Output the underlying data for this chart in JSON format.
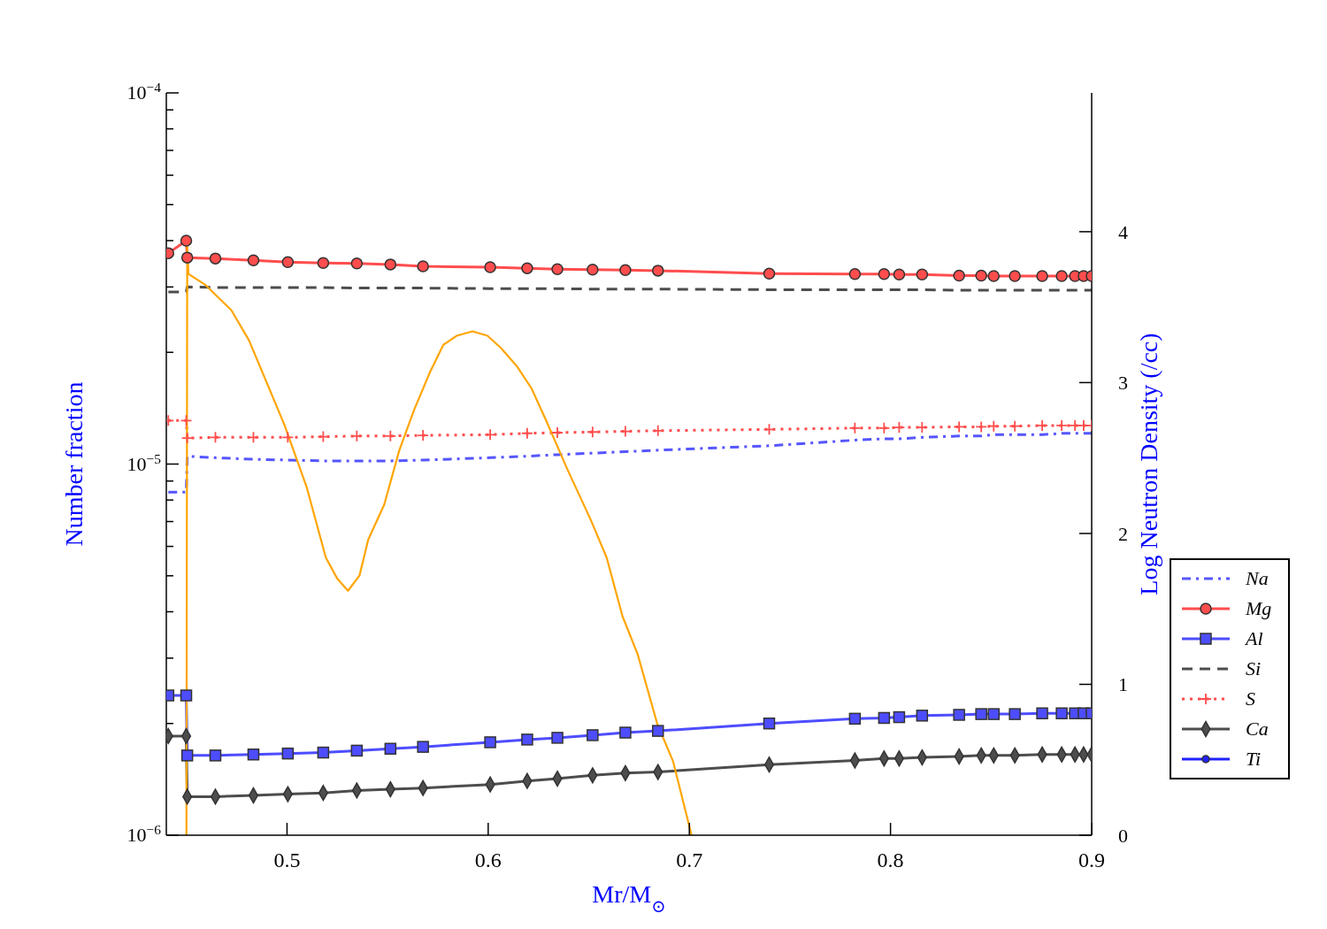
{
  "chart_data": {
    "type": "line",
    "xlabel": "Mr/M$_{⊙}$",
    "ylabel": "Number fraction",
    "y2label": "Log Neutron Density (/cc)",
    "log": "y",
    "legend": "right",
    "xlim": [
      0.44,
      0.9
    ],
    "xticks": [
      0.5,
      0.6,
      0.7,
      0.8,
      0.9
    ],
    "ylim": [
      1e-06,
      0.0001
    ],
    "yticks": [
      {
        "value": 1e-06,
        "label": "10$^{−6}$"
      },
      {
        "value": 2e-06,
        "label": null
      },
      {
        "value": 3e-06,
        "label": null
      },
      {
        "value": 4e-06,
        "label": null
      },
      {
        "value": 5e-06,
        "label": null
      },
      {
        "value": 6e-06,
        "label": null
      },
      {
        "value": 7e-06,
        "label": null
      },
      {
        "value": 8e-06,
        "label": null
      },
      {
        "value": 9e-06,
        "label": null
      },
      {
        "value": 1e-05,
        "label": "10$^{−5}$"
      },
      {
        "value": 2e-05,
        "label": null
      },
      {
        "value": 3e-05,
        "label": null
      },
      {
        "value": 4e-05,
        "label": null
      },
      {
        "value": 5e-05,
        "label": null
      },
      {
        "value": 6e-05,
        "label": null
      },
      {
        "value": 7e-05,
        "label": null
      },
      {
        "value": 8e-05,
        "label": null
      },
      {
        "value": 9e-05,
        "label": null
      },
      {
        "value": 0.0001,
        "label": "10$^{−4}$"
      }
    ],
    "y2lim": [
      0,
      4.92
    ],
    "y2ticks": [
      0,
      1,
      2,
      3,
      4
    ],
    "x": [
      0.441,
      0.4499,
      0.4504,
      0.4644,
      0.4833,
      0.5004,
      0.518,
      0.5347,
      0.5514,
      0.5676,
      0.601,
      0.6194,
      0.6344,
      0.6519,
      0.6682,
      0.6844,
      0.7397,
      0.7823,
      0.7968,
      0.8043,
      0.8157,
      0.8341,
      0.8451,
      0.8513,
      0.8618,
      0.8754,
      0.8851,
      0.8917,
      0.896,
      0.9
    ],
    "series": [
      {
        "name": "Na",
        "color": "#5555ff",
        "marker": "none",
        "line_style": "dashdot",
        "values": [
          8.4e-06,
          8.4e-06,
          1.05e-05,
          1.04e-05,
          1.03e-05,
          1.025e-05,
          1.02e-05,
          1.02e-05,
          1.02e-05,
          1.025e-05,
          1.04e-05,
          1.05e-05,
          1.06e-05,
          1.07e-05,
          1.08e-05,
          1.09e-05,
          1.12e-05,
          1.16e-05,
          1.17e-05,
          1.17e-05,
          1.18e-05,
          1.19e-05,
          1.19e-05,
          1.2e-05,
          1.2e-05,
          1.2e-05,
          1.21e-05,
          1.21e-05,
          1.21e-05,
          1.21e-05
        ]
      },
      {
        "name": "Mg",
        "color": "#ff4d4d",
        "marker": "circle",
        "line_style": "solid",
        "values": [
          3.7e-05,
          4e-05,
          3.6e-05,
          3.58e-05,
          3.54e-05,
          3.5e-05,
          3.48e-05,
          3.47e-05,
          3.45e-05,
          3.41e-05,
          3.39e-05,
          3.37e-05,
          3.35e-05,
          3.34e-05,
          3.33e-05,
          3.32e-05,
          3.26e-05,
          3.25e-05,
          3.25e-05,
          3.24e-05,
          3.24e-05,
          3.22e-05,
          3.22e-05,
          3.21e-05,
          3.21e-05,
          3.21e-05,
          3.21e-05,
          3.21e-05,
          3.21e-05,
          3.21e-05
        ]
      },
      {
        "name": "Al",
        "color": "#4d4dff",
        "marker": "square",
        "line_style": "solid",
        "values": [
          2.38e-06,
          2.38e-06,
          1.64e-06,
          1.64e-06,
          1.65e-06,
          1.66e-06,
          1.67e-06,
          1.69e-06,
          1.71e-06,
          1.73e-06,
          1.78e-06,
          1.81e-06,
          1.83e-06,
          1.86e-06,
          1.89e-06,
          1.91e-06,
          2e-06,
          2.06e-06,
          2.07e-06,
          2.08e-06,
          2.1e-06,
          2.11e-06,
          2.12e-06,
          2.12e-06,
          2.12e-06,
          2.13e-06,
          2.13e-06,
          2.13e-06,
          2.13e-06,
          2.13e-06
        ]
      },
      {
        "name": "Si",
        "color": "#4d4d4d",
        "marker": "none",
        "line_style": "dashed",
        "values": [
          2.91e-05,
          2.91e-05,
          3e-05,
          2.99e-05,
          2.99e-05,
          2.99e-05,
          2.99e-05,
          2.98e-05,
          2.98e-05,
          2.98e-05,
          2.97e-05,
          2.97e-05,
          2.97e-05,
          2.96e-05,
          2.96e-05,
          2.96e-05,
          2.95e-05,
          2.95e-05,
          2.95e-05,
          2.95e-05,
          2.95e-05,
          2.94e-05,
          2.94e-05,
          2.94e-05,
          2.94e-05,
          2.94e-05,
          2.94e-05,
          2.94e-05,
          2.94e-05,
          2.94e-05
        ]
      },
      {
        "name": "S",
        "color": "#ff4d4d",
        "marker": "cross",
        "line_style": "dotted",
        "values": [
          1.31e-05,
          1.31e-05,
          1.175e-05,
          1.18e-05,
          1.18e-05,
          1.18e-05,
          1.185e-05,
          1.19e-05,
          1.19e-05,
          1.195e-05,
          1.2e-05,
          1.21e-05,
          1.215e-05,
          1.22e-05,
          1.225e-05,
          1.23e-05,
          1.24e-05,
          1.25e-05,
          1.25e-05,
          1.255e-05,
          1.255e-05,
          1.26e-05,
          1.26e-05,
          1.265e-05,
          1.265e-05,
          1.27e-05,
          1.27e-05,
          1.27e-05,
          1.27e-05,
          1.27e-05
        ]
      },
      {
        "name": "Ca",
        "color": "#4d4d4d",
        "marker": "diamond",
        "line_style": "solid",
        "values": [
          1.85e-06,
          1.85e-06,
          1.27e-06,
          1.27e-06,
          1.28e-06,
          1.29e-06,
          1.3e-06,
          1.32e-06,
          1.33e-06,
          1.34e-06,
          1.37e-06,
          1.4e-06,
          1.42e-06,
          1.45e-06,
          1.47e-06,
          1.48e-06,
          1.55e-06,
          1.59e-06,
          1.61e-06,
          1.61e-06,
          1.62e-06,
          1.63e-06,
          1.64e-06,
          1.64e-06,
          1.64e-06,
          1.65e-06,
          1.65e-06,
          1.65e-06,
          1.65e-06,
          1.65e-06
        ]
      },
      {
        "name": "Ti",
        "color": "#2222ff",
        "marker": "circle",
        "line_style": "solid",
        "values": [
          null,
          null,
          null,
          null,
          null,
          null,
          null,
          null,
          null,
          null,
          null,
          null,
          null,
          null,
          null,
          null,
          null,
          null,
          null,
          null,
          null,
          null,
          null,
          null,
          null,
          null,
          null,
          null,
          null,
          null
        ]
      },
      {
        "color": "#ffa500",
        "axis": "y2",
        "marker": "none",
        "line_style": "solid",
        "x": [
          0.45,
          0.4504,
          0.451,
          0.4592,
          0.4723,
          0.4811,
          0.4899,
          0.4987,
          0.5097,
          0.5193,
          0.525,
          0.5303,
          0.536,
          0.5404,
          0.5483,
          0.5558,
          0.5632,
          0.5711,
          0.5777,
          0.5843,
          0.5922,
          0.5997,
          0.6063,
          0.6142,
          0.6216,
          0.6291,
          0.6392,
          0.651,
          0.6589,
          0.6668,
          0.6743,
          0.684,
          0.6919,
          0.7011
        ],
        "values": [
          0,
          3.9,
          3.72,
          3.65,
          3.48,
          3.28,
          3.0,
          2.72,
          2.31,
          1.84,
          1.7,
          1.62,
          1.72,
          1.96,
          2.19,
          2.55,
          2.82,
          3.07,
          3.25,
          3.31,
          3.34,
          3.31,
          3.23,
          3.11,
          2.96,
          2.74,
          2.43,
          2.09,
          1.84,
          1.45,
          1.2,
          0.74,
          0.49,
          0
        ]
      }
    ]
  }
}
